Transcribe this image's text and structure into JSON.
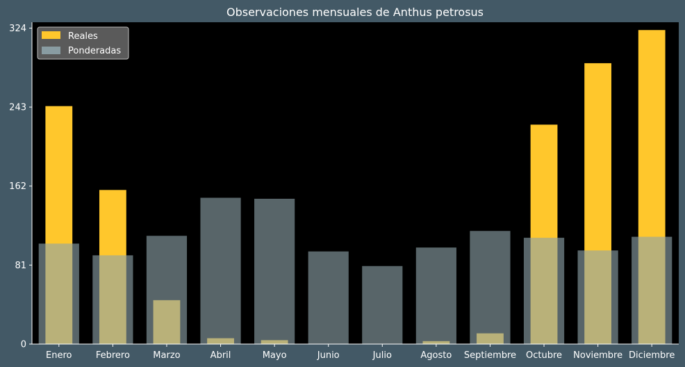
{
  "chart_data": {
    "type": "bar",
    "title": "Observaciones mensuales de Anthus petrosus",
    "xlabel": "",
    "ylabel": "",
    "categories": [
      "Enero",
      "Febrero",
      "Marzo",
      "Abril",
      "Mayo",
      "Junio",
      "Julio",
      "Agosto",
      "Septiembre",
      "Octubre",
      "Noviembre",
      "Diciembre"
    ],
    "series": [
      {
        "name": "Reales",
        "values": [
          244,
          158,
          45,
          6,
          4,
          0,
          0,
          3,
          11,
          225,
          288,
          322
        ]
      },
      {
        "name": "Ponderadas",
        "values": [
          103,
          91,
          111,
          150,
          149,
          95,
          80,
          99,
          116,
          109,
          96,
          110
        ]
      }
    ],
    "ylim": [
      0,
      330
    ],
    "yticks": [
      0,
      81,
      162,
      243,
      324
    ],
    "legend_position": "top-left",
    "grid": false,
    "colors": {
      "page_background": "#435966",
      "plot_background": "#000000",
      "reales": "#ffc72c",
      "ponderadas": "#8ea3aa",
      "ponderadas_opacity": 0.62,
      "text": "#ffffff",
      "axis": "#ffffff"
    }
  }
}
